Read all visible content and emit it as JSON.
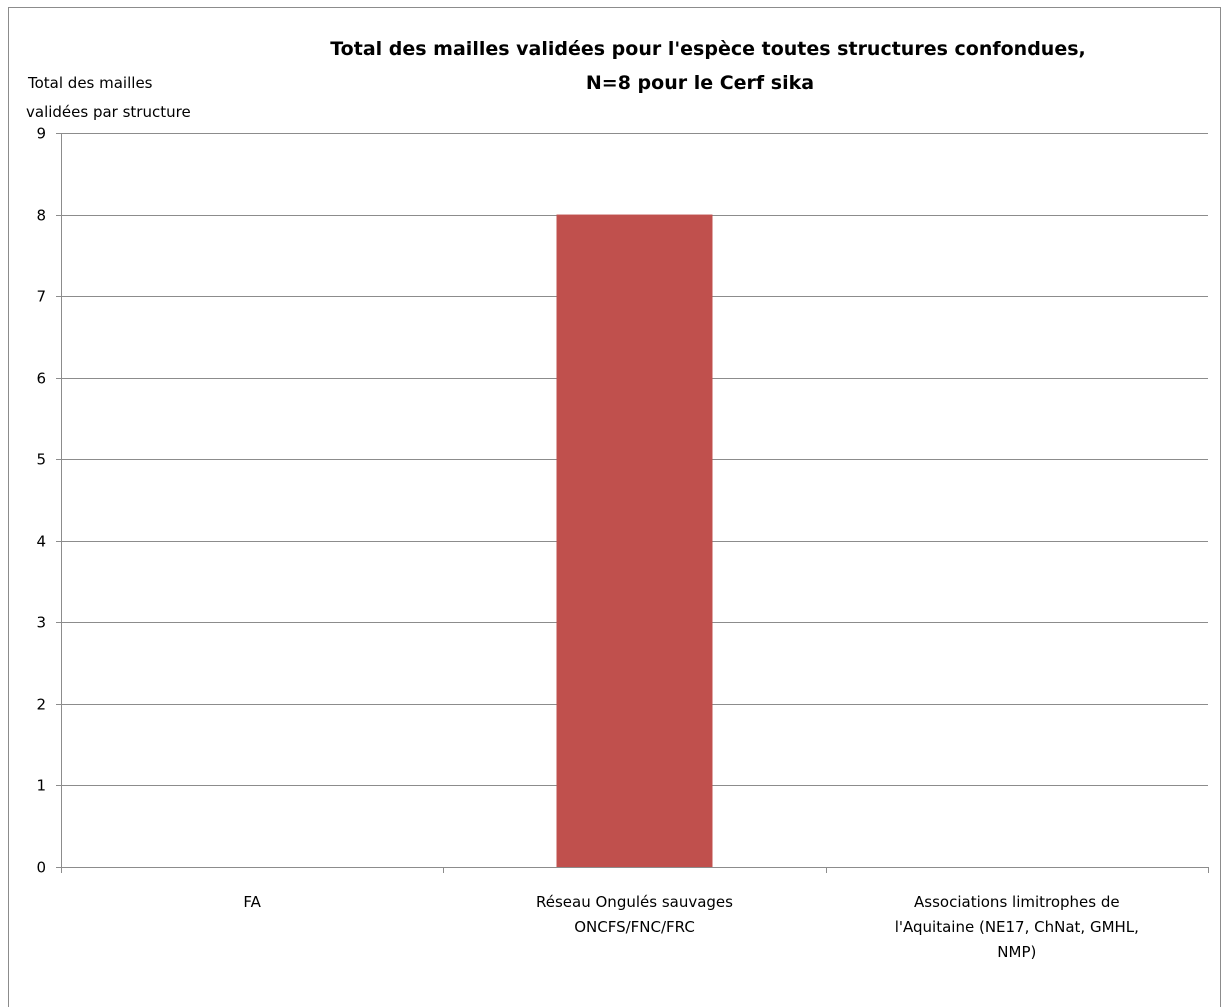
{
  "chart_data": {
    "type": "bar",
    "title": "Total des mailles validées pour l'espèce toutes structures confondues, N=8 pour le Cerf sika",
    "title_lines": [
      "Total des mailles validées pour l'espèce toutes structures confondues,",
      "N=8 pour le Cerf sika"
    ],
    "ylabel": "Total des mailles validées par structure",
    "ylabel_lines": [
      "Total des mailles",
      "validées par structure"
    ],
    "xlabel": "",
    "categories": [
      "FA",
      "Réseau Ongulés sauvages ONCFS/FNC/FRC",
      "Associations limitrophes de l'Aquitaine (NE17, ChNat, GMHL, NMP)"
    ],
    "category_lines": [
      [
        "FA"
      ],
      [
        "Réseau Ongulés sauvages",
        "ONCFS/FNC/FRC"
      ],
      [
        "Associations limitrophes de",
        "l'Aquitaine (NE17, ChNat, GMHL,",
        "NMP)"
      ]
    ],
    "values": [
      0,
      8,
      0
    ],
    "ylim": [
      0,
      9
    ],
    "yticks": [
      "0",
      "1",
      "2",
      "3",
      "4",
      "5",
      "6",
      "7",
      "8",
      "9"
    ],
    "grid": true,
    "legend": "none",
    "bar_color": "#c0504d",
    "grid_color": "#8c8c8c"
  }
}
